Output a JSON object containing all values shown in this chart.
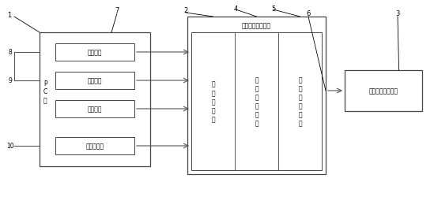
{
  "bg_color": "#ffffff",
  "line_color": "#555555",
  "text_color": "#000000",
  "box1_label": "液晶模组测试模块",
  "unit1": "主\n控\n制\n单\n元",
  "unit2": "信\n号\n发\n生\n单\n元",
  "unit3": "信\n号\n转\n换\n单\n元",
  "sub1": "输入单元",
  "sub2": "显示单元",
  "sub3": "存储单元",
  "sub4": "以太网接口",
  "right_box": "待测试的液晶模组",
  "pc_label": "P\nC\n端",
  "num1": "1",
  "num2": "2",
  "num3": "3",
  "num4": "4",
  "num5": "5",
  "num6": "6",
  "num7": "7",
  "num8": "8",
  "num9": "9",
  "num10": "10"
}
